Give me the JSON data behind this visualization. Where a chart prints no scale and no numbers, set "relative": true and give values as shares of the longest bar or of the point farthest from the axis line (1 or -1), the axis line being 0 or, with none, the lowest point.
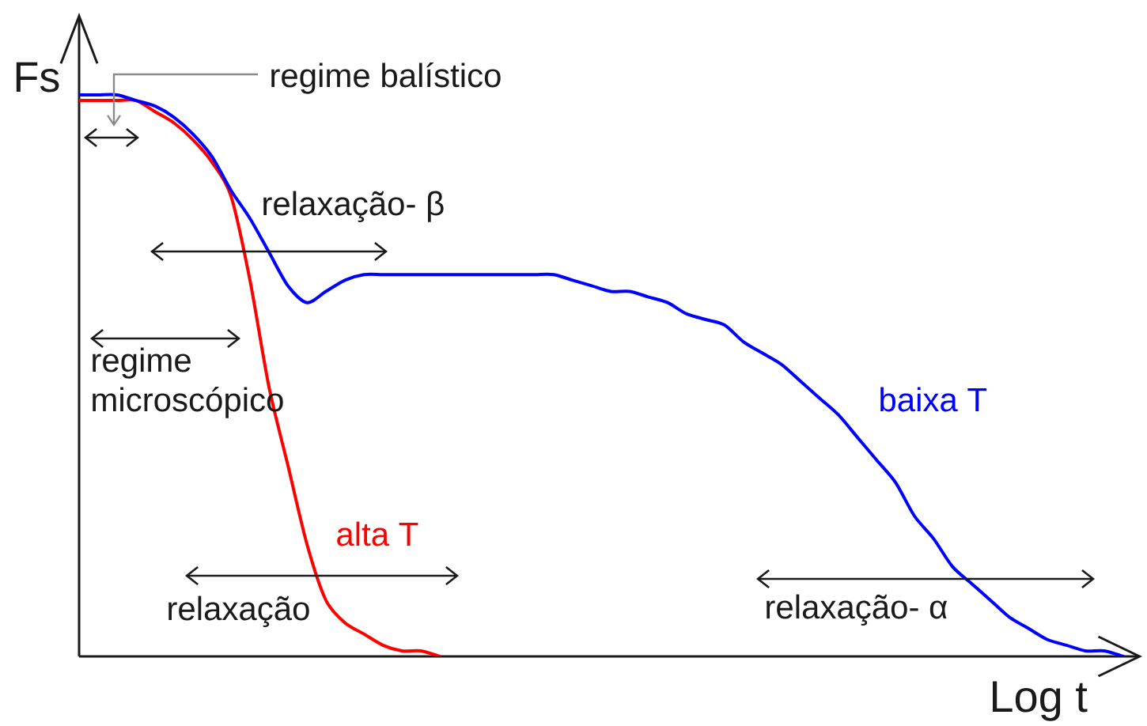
{
  "chart_data": {
    "type": "line",
    "relative": true,
    "xlabel": "Log t",
    "ylabel": "Fs",
    "annotations": [
      "regime balístico",
      "relaxação- β",
      "regime microscópico",
      "relaxação",
      "relaxação- α"
    ],
    "categories": [
      null,
      null,
      null,
      null,
      null,
      null,
      null,
      null,
      null,
      null,
      null,
      null,
      null,
      null,
      null,
      null,
      null,
      null,
      null,
      null,
      null,
      null,
      null,
      null,
      null,
      null,
      null,
      null,
      null,
      null,
      null,
      null,
      null,
      null,
      null,
      null,
      null,
      null,
      null,
      null,
      null,
      null,
      null,
      null,
      null,
      null,
      null,
      null,
      null,
      null,
      null,
      null,
      null,
      null,
      null,
      null
    ],
    "series": [
      {
        "name": "alta T",
        "color": "#ff0000",
        "values": [
          0.99,
          0.99,
          0.99,
          0.99,
          0.97,
          0.95,
          0.92,
          0.88,
          0.82,
          0.67,
          0.48,
          0.34,
          0.2,
          0.1,
          0.06,
          0.04,
          0.02,
          0.01,
          0.01,
          0,
          null,
          null,
          null,
          null,
          null,
          null,
          null,
          null,
          null,
          null,
          null,
          null,
          null,
          null,
          null,
          null,
          null,
          null,
          null,
          null,
          null,
          null,
          null,
          null,
          null,
          null,
          null,
          null,
          null,
          null,
          null,
          null,
          null,
          null,
          null,
          null
        ]
      },
      {
        "name": "baixa T",
        "color": "#0000ff",
        "values": [
          1.0,
          1.0,
          1.0,
          0.99,
          0.98,
          0.96,
          0.93,
          0.89,
          0.83,
          0.78,
          0.72,
          0.66,
          0.63,
          0.65,
          0.67,
          0.68,
          0.68,
          0.68,
          0.68,
          0.68,
          0.68,
          0.68,
          0.68,
          0.68,
          0.68,
          0.68,
          0.67,
          0.66,
          0.65,
          0.65,
          0.64,
          0.63,
          0.61,
          0.6,
          0.59,
          0.56,
          0.54,
          0.52,
          0.49,
          0.46,
          0.43,
          0.39,
          0.35,
          0.31,
          0.25,
          0.21,
          0.16,
          0.13,
          0.1,
          0.07,
          0.05,
          0.03,
          0.02,
          0.01,
          0.01,
          0
        ]
      }
    ]
  }
}
